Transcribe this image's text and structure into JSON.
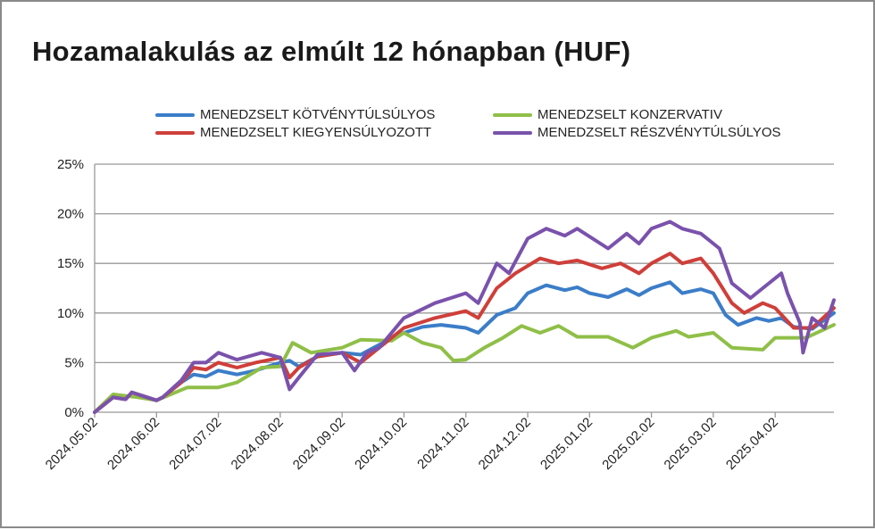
{
  "chart_data": {
    "type": "line",
    "title": "Hozamalakulás az elmúlt 12 hónapban (HUF)",
    "xlabel": "",
    "ylabel": "",
    "ylim": [
      0,
      25
    ],
    "xlim_months": [
      0,
      11.95
    ],
    "y_ticks": [
      "0%",
      "5%",
      "10%",
      "15%",
      "20%",
      "25%"
    ],
    "y_tick_values": [
      0,
      5,
      10,
      15,
      20,
      25
    ],
    "x_ticks": [
      "2024.05.02",
      "2024.06.02",
      "2024.07.02",
      "2024.08.02",
      "2024.09.02",
      "2024.10.02",
      "2024.11.02",
      "2024.12.02",
      "2025.01.02",
      "2025.02.02",
      "2025.03.02",
      "2025.04.02"
    ],
    "grid": true,
    "legend_placement": "top",
    "series": [
      {
        "name": "MENEDZSELT KÖTVÉNYTÚLSÚLYOS",
        "color": "#3b7dc8",
        "x": [
          0,
          0.3,
          0.5,
          0.6,
          1.0,
          1.1,
          1.4,
          1.6,
          1.8,
          2.0,
          2.3,
          2.6,
          3.0,
          3.15,
          3.3,
          3.6,
          4.0,
          4.3,
          4.6,
          5.0,
          5.3,
          5.6,
          6.0,
          6.2,
          6.5,
          6.8,
          7.0,
          7.3,
          7.6,
          7.8,
          8.0,
          8.3,
          8.6,
          8.8,
          9.0,
          9.3,
          9.5,
          9.8,
          10.0,
          10.2,
          10.4,
          10.7,
          10.9,
          11.1,
          11.3,
          11.6,
          11.95
        ],
        "y": [
          0,
          1.5,
          1.3,
          2.0,
          1.2,
          1.5,
          3.0,
          3.8,
          3.6,
          4.2,
          3.8,
          4.2,
          5.0,
          5.2,
          4.6,
          5.6,
          6.0,
          5.8,
          6.8,
          8.0,
          8.6,
          8.8,
          8.5,
          8.0,
          9.8,
          10.5,
          12.0,
          12.8,
          12.3,
          12.6,
          12.0,
          11.6,
          12.4,
          11.8,
          12.5,
          13.1,
          12.0,
          12.4,
          12.0,
          9.8,
          8.8,
          9.5,
          9.2,
          9.5,
          8.6,
          8.4,
          10.0
        ]
      },
      {
        "name": "MENEDZSELT KONZERVATIV",
        "color": "#8fbf48",
        "x": [
          0,
          0.3,
          0.7,
          1.0,
          1.5,
          2.0,
          2.3,
          2.7,
          3.0,
          3.2,
          3.5,
          4.0,
          4.3,
          4.8,
          5.0,
          5.3,
          5.6,
          5.8,
          6.0,
          6.3,
          6.6,
          6.9,
          7.2,
          7.5,
          7.8,
          8.3,
          8.7,
          9.0,
          9.4,
          9.6,
          10.0,
          10.3,
          10.8,
          11.0,
          11.5,
          11.95
        ],
        "y": [
          0,
          1.8,
          1.5,
          1.2,
          2.5,
          2.5,
          3.0,
          4.5,
          4.6,
          7.0,
          6.0,
          6.5,
          7.3,
          7.2,
          8.0,
          7.0,
          6.5,
          5.2,
          5.3,
          6.5,
          7.5,
          8.7,
          8.0,
          8.7,
          7.6,
          7.6,
          6.5,
          7.5,
          8.2,
          7.6,
          8.0,
          6.5,
          6.3,
          7.5,
          7.5,
          8.8
        ]
      },
      {
        "name": "MENEDZSELT KIEGYENSÚLYOZOTT",
        "color": "#cf3f3a",
        "x": [
          0,
          0.3,
          0.5,
          0.6,
          1.0,
          1.1,
          1.4,
          1.6,
          1.8,
          2.0,
          2.3,
          2.6,
          3.0,
          3.15,
          3.3,
          3.6,
          4.0,
          4.3,
          4.6,
          5.0,
          5.5,
          6.0,
          6.2,
          6.5,
          6.8,
          7.2,
          7.5,
          7.8,
          8.2,
          8.5,
          8.8,
          9.0,
          9.3,
          9.5,
          9.8,
          10.0,
          10.3,
          10.5,
          10.8,
          11.0,
          11.3,
          11.6,
          11.95
        ],
        "y": [
          0,
          1.5,
          1.3,
          2.0,
          1.2,
          1.5,
          3.0,
          4.5,
          4.3,
          5.0,
          4.5,
          5.0,
          5.5,
          3.5,
          4.5,
          5.6,
          6.0,
          5.0,
          6.5,
          8.5,
          9.5,
          10.2,
          9.5,
          12.5,
          14.0,
          15.5,
          15.0,
          15.3,
          14.5,
          15.0,
          14.0,
          15.0,
          16.0,
          15.0,
          15.5,
          14.0,
          11.0,
          10.0,
          11.0,
          10.5,
          8.5,
          8.5,
          10.5
        ]
      },
      {
        "name": "MENEDZSELT RÉSZVÉNYTÚLSÚLYOS",
        "color": "#7a52ac",
        "x": [
          0,
          0.3,
          0.5,
          0.6,
          1.0,
          1.1,
          1.4,
          1.6,
          1.8,
          2.0,
          2.3,
          2.7,
          3.0,
          3.15,
          3.3,
          3.6,
          4.0,
          4.2,
          4.4,
          4.6,
          5.0,
          5.5,
          6.0,
          6.2,
          6.5,
          6.7,
          7.0,
          7.3,
          7.6,
          7.8,
          8.3,
          8.6,
          8.8,
          9.0,
          9.3,
          9.5,
          9.8,
          10.1,
          10.3,
          10.6,
          10.8,
          11.1,
          11.2,
          11.4,
          11.45,
          11.6,
          11.8,
          11.95
        ],
        "y": [
          0,
          1.5,
          1.3,
          2.0,
          1.2,
          1.5,
          3.2,
          5.0,
          5.0,
          6.0,
          5.3,
          6.0,
          5.5,
          2.3,
          3.5,
          5.8,
          6.0,
          4.2,
          6.0,
          6.5,
          9.5,
          11.0,
          12.0,
          11.0,
          15.0,
          14.0,
          17.5,
          18.5,
          17.8,
          18.5,
          16.5,
          18.0,
          17.0,
          18.5,
          19.2,
          18.5,
          18.0,
          16.5,
          13.0,
          11.5,
          12.5,
          14.0,
          12.0,
          9.0,
          6.0,
          9.5,
          8.5,
          11.3
        ]
      }
    ]
  }
}
